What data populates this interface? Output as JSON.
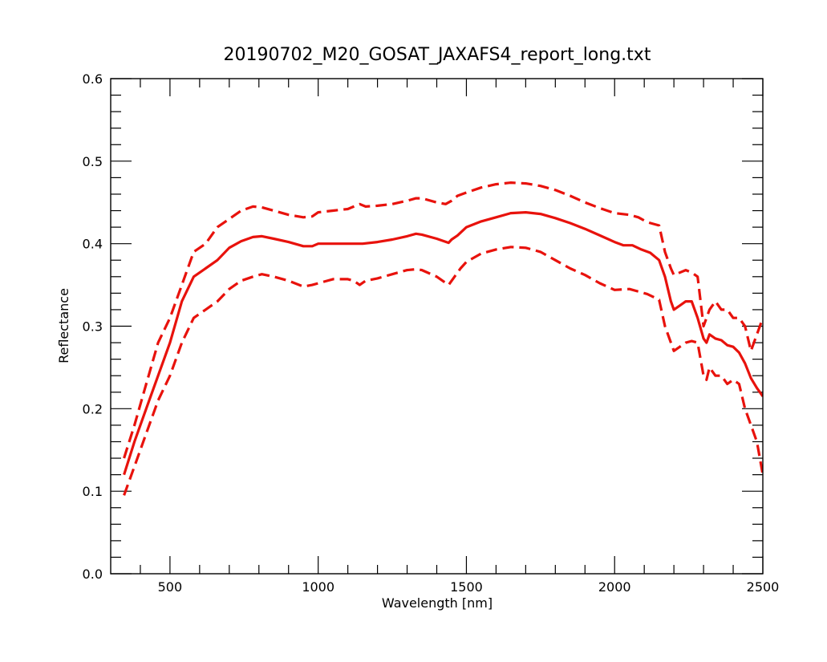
{
  "chart_data": {
    "type": "line",
    "title": "20190702_M20_GOSAT_JAXAFS4_report_long.txt",
    "xlabel": "Wavelength [nm]",
    "ylabel": "Reflectance",
    "xlim": [
      300,
      2500
    ],
    "ylim": [
      0.0,
      0.6
    ],
    "x_major_ticks": [
      500,
      1000,
      1500,
      2000,
      2500
    ],
    "x_tick_labels": [
      "500",
      "1000",
      "1500",
      "2000",
      "2500"
    ],
    "y_major_ticks": [
      0.0,
      0.1,
      0.2,
      0.3,
      0.4,
      0.5,
      0.6
    ],
    "y_tick_labels": [
      "0.0",
      "0.1",
      "0.2",
      "0.3",
      "0.4",
      "0.5",
      "0.6"
    ],
    "grid": false,
    "legend": "none",
    "line_color": "#e8120c",
    "series": [
      {
        "style": "dashed",
        "x": [
          345,
          380,
          420,
          460,
          500,
          540,
          580,
          620,
          660,
          700,
          740,
          780,
          810,
          850,
          900,
          950,
          980,
          1000,
          1050,
          1100,
          1120,
          1140,
          1160,
          1200,
          1250,
          1300,
          1330,
          1350,
          1400,
          1430,
          1450,
          1470,
          1500,
          1550,
          1600,
          1650,
          1700,
          1750,
          1800,
          1850,
          1900,
          1950,
          2000,
          2050,
          2080,
          2110,
          2150,
          2170,
          2190,
          2200,
          2220,
          2240,
          2260,
          2280,
          2300,
          2320,
          2340,
          2360,
          2380,
          2400,
          2420,
          2440,
          2460,
          2480,
          2500
        ],
        "y": [
          0.14,
          0.18,
          0.23,
          0.28,
          0.31,
          0.35,
          0.39,
          0.4,
          0.42,
          0.43,
          0.44,
          0.445,
          0.444,
          0.44,
          0.435,
          0.432,
          0.433,
          0.438,
          0.44,
          0.442,
          0.445,
          0.448,
          0.445,
          0.446,
          0.448,
          0.452,
          0.455,
          0.455,
          0.45,
          0.448,
          0.452,
          0.458,
          0.462,
          0.468,
          0.472,
          0.474,
          0.473,
          0.47,
          0.465,
          0.458,
          0.45,
          0.443,
          0.437,
          0.435,
          0.432,
          0.426,
          0.422,
          0.39,
          0.37,
          0.362,
          0.365,
          0.368,
          0.365,
          0.36,
          0.3,
          0.32,
          0.33,
          0.32,
          0.32,
          0.31,
          0.31,
          0.3,
          0.27,
          0.29,
          0.31
        ]
      },
      {
        "style": "solid",
        "x": [
          345,
          380,
          420,
          460,
          500,
          540,
          580,
          620,
          660,
          700,
          740,
          780,
          810,
          850,
          900,
          950,
          980,
          1000,
          1050,
          1100,
          1150,
          1200,
          1250,
          1300,
          1330,
          1350,
          1400,
          1440,
          1450,
          1470,
          1500,
          1550,
          1600,
          1650,
          1700,
          1750,
          1800,
          1850,
          1900,
          1950,
          2000,
          2030,
          2060,
          2090,
          2120,
          2150,
          2170,
          2180,
          2190,
          2200,
          2220,
          2240,
          2260,
          2280,
          2300,
          2310,
          2320,
          2340,
          2360,
          2380,
          2400,
          2420,
          2440,
          2460,
          2480,
          2500
        ],
        "y": [
          0.12,
          0.16,
          0.2,
          0.24,
          0.28,
          0.33,
          0.36,
          0.37,
          0.38,
          0.395,
          0.403,
          0.408,
          0.409,
          0.406,
          0.402,
          0.397,
          0.397,
          0.4,
          0.4,
          0.4,
          0.4,
          0.402,
          0.405,
          0.409,
          0.412,
          0.411,
          0.406,
          0.401,
          0.405,
          0.41,
          0.42,
          0.427,
          0.432,
          0.437,
          0.438,
          0.436,
          0.431,
          0.425,
          0.418,
          0.41,
          0.402,
          0.398,
          0.398,
          0.393,
          0.389,
          0.38,
          0.36,
          0.345,
          0.33,
          0.32,
          0.325,
          0.33,
          0.33,
          0.31,
          0.285,
          0.28,
          0.29,
          0.285,
          0.283,
          0.277,
          0.275,
          0.268,
          0.255,
          0.237,
          0.225,
          0.215
        ]
      },
      {
        "style": "dashed",
        "x": [
          345,
          380,
          420,
          460,
          500,
          540,
          580,
          620,
          660,
          700,
          740,
          780,
          810,
          850,
          900,
          950,
          980,
          1000,
          1050,
          1100,
          1120,
          1140,
          1160,
          1200,
          1250,
          1300,
          1330,
          1350,
          1400,
          1440,
          1460,
          1480,
          1500,
          1550,
          1600,
          1650,
          1700,
          1750,
          1800,
          1850,
          1900,
          1950,
          2000,
          2050,
          2080,
          2110,
          2150,
          2170,
          2190,
          2200,
          2220,
          2240,
          2260,
          2280,
          2300,
          2310,
          2320,
          2340,
          2360,
          2380,
          2400,
          2420,
          2440,
          2460,
          2480,
          2500
        ],
        "y": [
          0.095,
          0.13,
          0.17,
          0.21,
          0.24,
          0.28,
          0.31,
          0.32,
          0.33,
          0.345,
          0.355,
          0.36,
          0.363,
          0.36,
          0.355,
          0.348,
          0.35,
          0.352,
          0.357,
          0.357,
          0.355,
          0.35,
          0.355,
          0.358,
          0.363,
          0.368,
          0.369,
          0.368,
          0.36,
          0.35,
          0.36,
          0.37,
          0.378,
          0.388,
          0.393,
          0.396,
          0.395,
          0.39,
          0.38,
          0.37,
          0.362,
          0.352,
          0.344,
          0.345,
          0.342,
          0.339,
          0.332,
          0.3,
          0.28,
          0.27,
          0.275,
          0.28,
          0.282,
          0.28,
          0.24,
          0.235,
          0.25,
          0.24,
          0.24,
          0.23,
          0.235,
          0.23,
          0.2,
          0.18,
          0.16,
          0.12
        ]
      }
    ]
  }
}
